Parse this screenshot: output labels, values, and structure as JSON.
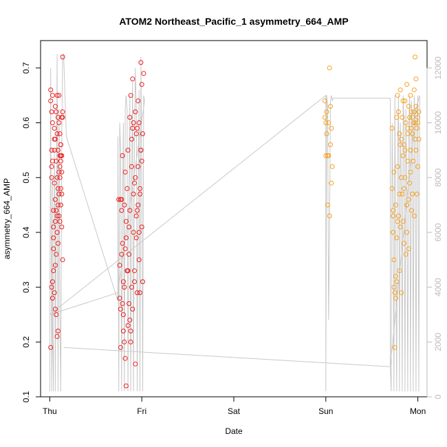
{
  "chart_data": {
    "type": "scatter",
    "title": "ATOM2 Northeast_Pacific_1 asymmetry_664_AMP",
    "xlabel": "Date",
    "ylabel": "asymmetry_664_AMP",
    "x_ticks": [
      "Thu",
      "Fri",
      "Sat",
      "Sun",
      "Mon"
    ],
    "y_ticks": [
      "0.1",
      "0.2",
      "0.3",
      "0.4",
      "0.5",
      "0.6",
      "0.7"
    ],
    "y2_ticks": [
      "0",
      "2000",
      "4000",
      "6000",
      "8000",
      "10000",
      "12000"
    ],
    "xlim": [
      -0.1,
      4.1
    ],
    "ylim": [
      0.1,
      0.75
    ],
    "y2lim": [
      0,
      13000
    ],
    "grid": false,
    "colors": {
      "red_points": "#ee1c1c",
      "orange_points": "#f5a020",
      "line": "#c8c8c8",
      "axis": "#000000",
      "axis2": "#bbbbbb"
    },
    "series": [
      {
        "color": "red_points",
        "x": [
          0.01,
          0.01,
          0.02,
          0.02,
          0.02,
          0.03,
          0.03,
          0.03,
          0.04,
          0.04,
          0.04,
          0.05,
          0.05,
          0.05,
          0.06,
          0.06,
          0.06,
          0.07,
          0.07,
          0.07,
          0.08,
          0.08,
          0.08,
          0.09,
          0.09,
          0.09,
          0.1,
          0.1,
          0.1,
          0.11,
          0.11,
          0.11,
          0.12,
          0.12,
          0.12,
          0.13,
          0.13,
          0.13,
          0.14,
          0.14,
          0.14,
          0.02,
          0.04,
          0.06,
          0.08,
          0.1,
          0.12,
          0.05,
          0.07,
          0.09,
          0.03,
          0.06,
          0.11,
          0.08,
          0.13,
          0.01,
          0.04,
          0.09,
          0.12,
          0.1,
          0.07,
          0.02,
          0.05,
          0.11,
          0.06,
          0.03,
          0.08,
          0.12,
          0.14,
          0.09,
          0.13
        ],
        "y": [
          0.66,
          0.64,
          0.55,
          0.52,
          0.5,
          0.65,
          0.6,
          0.53,
          0.44,
          0.41,
          0.37,
          0.59,
          0.55,
          0.49,
          0.63,
          0.57,
          0.46,
          0.62,
          0.53,
          0.44,
          0.65,
          0.58,
          0.5,
          0.61,
          0.55,
          0.48,
          0.6,
          0.51,
          0.43,
          0.58,
          0.52,
          0.42,
          0.56,
          0.54,
          0.48,
          0.54,
          0.47,
          0.41,
          0.72,
          0.62,
          0.35,
          0.3,
          0.39,
          0.34,
          0.43,
          0.47,
          0.56,
          0.29,
          0.25,
          0.22,
          0.28,
          0.26,
          0.54,
          0.21,
          0.61,
          0.19,
          0.33,
          0.38,
          0.45,
          0.65,
          0.36,
          0.62,
          0.57,
          0.5,
          0.42,
          0.31,
          0.4,
          0.53,
          0.61,
          0.45,
          0.51
        ]
      },
      {
        "color": "red_points",
        "x": [
          0.75,
          0.76,
          0.76,
          0.77,
          0.77,
          0.78,
          0.78,
          0.79,
          0.79,
          0.8,
          0.8,
          0.81,
          0.81,
          0.82,
          0.82,
          0.83,
          0.83,
          0.84,
          0.84,
          0.85,
          0.85,
          0.86,
          0.86,
          0.87,
          0.87,
          0.88,
          0.88,
          0.89,
          0.89,
          0.9,
          0.9,
          0.91,
          0.91,
          0.92,
          0.92,
          0.93,
          0.93,
          0.94,
          0.94,
          0.95,
          0.95,
          0.96,
          0.96,
          0.97,
          0.97,
          0.98,
          0.98,
          0.99,
          0.99,
          1.0,
          1.0,
          1.01,
          1.01,
          1.02,
          0.77,
          0.79,
          0.81,
          0.83,
          0.85,
          0.87,
          0.89,
          0.91,
          0.93,
          0.95,
          0.97,
          0.99,
          0.78,
          0.82,
          0.86,
          0.9,
          0.94,
          0.98,
          0.8,
          0.84,
          0.88,
          0.92,
          0.96,
          1.0
        ],
        "y": [
          0.46,
          0.34,
          0.28,
          0.46,
          0.19,
          0.46,
          0.36,
          0.27,
          0.54,
          0.31,
          0.25,
          0.45,
          0.2,
          0.17,
          0.51,
          0.39,
          0.12,
          0.48,
          0.33,
          0.23,
          0.55,
          0.41,
          0.27,
          0.61,
          0.44,
          0.22,
          0.65,
          0.52,
          0.3,
          0.68,
          0.59,
          0.4,
          0.6,
          0.49,
          0.33,
          0.62,
          0.5,
          0.39,
          0.58,
          0.44,
          0.29,
          0.64,
          0.52,
          0.35,
          0.6,
          0.47,
          0.29,
          0.71,
          0.55,
          0.67,
          0.41,
          0.58,
          0.31,
          0.69,
          0.26,
          0.38,
          0.3,
          0.42,
          0.33,
          0.24,
          0.57,
          0.47,
          0.16,
          0.59,
          0.4,
          0.55,
          0.44,
          0.37,
          0.36,
          0.26,
          0.43,
          0.48,
          0.22,
          0.33,
          0.2,
          0.31,
          0.45,
          0.53
        ]
      },
      {
        "color": "orange_points",
        "x": [
          2.99,
          2.99,
          3.0,
          3.0,
          3.01,
          3.01,
          3.02,
          3.02,
          3.03,
          3.03,
          3.04,
          3.04,
          3.05,
          3.05,
          3.06,
          3.06,
          3.07
        ],
        "y": [
          0.64,
          0.61,
          0.6,
          0.54,
          0.62,
          0.58,
          0.54,
          0.45,
          0.6,
          0.54,
          0.7,
          0.43,
          0.63,
          0.56,
          0.59,
          0.49,
          0.52
        ]
      },
      {
        "color": "orange_points",
        "x": [
          3.72,
          3.72,
          3.73,
          3.73,
          3.74,
          3.74,
          3.75,
          3.75,
          3.76,
          3.76,
          3.77,
          3.77,
          3.78,
          3.78,
          3.79,
          3.79,
          3.8,
          3.8,
          3.81,
          3.81,
          3.82,
          3.82,
          3.83,
          3.83,
          3.84,
          3.84,
          3.85,
          3.85,
          3.86,
          3.86,
          3.87,
          3.87,
          3.88,
          3.88,
          3.89,
          3.89,
          3.9,
          3.9,
          3.91,
          3.91,
          3.92,
          3.92,
          3.93,
          3.93,
          3.94,
          3.94,
          3.95,
          3.95,
          3.96,
          3.96,
          3.97,
          3.97,
          3.98,
          3.98,
          3.99,
          3.99,
          4.0,
          4.0,
          4.01,
          4.01,
          3.74,
          3.78,
          3.82,
          3.86,
          3.9,
          3.94,
          3.98,
          3.76,
          3.8,
          3.84,
          3.88,
          3.92,
          3.96,
          4.0,
          3.73,
          3.77,
          3.81,
          3.85,
          3.89,
          3.93,
          3.97
        ],
        "y": [
          0.59,
          0.48,
          0.44,
          0.4,
          0.3,
          0.51,
          0.29,
          0.19,
          0.28,
          0.45,
          0.31,
          0.61,
          0.65,
          0.52,
          0.62,
          0.43,
          0.58,
          0.33,
          0.66,
          0.41,
          0.57,
          0.29,
          0.61,
          0.47,
          0.64,
          0.42,
          0.56,
          0.38,
          0.64,
          0.5,
          0.6,
          0.36,
          0.67,
          0.45,
          0.58,
          0.53,
          0.63,
          0.37,
          0.61,
          0.49,
          0.65,
          0.55,
          0.59,
          0.44,
          0.61,
          0.47,
          0.6,
          0.53,
          0.62,
          0.43,
          0.72,
          0.6,
          0.68,
          0.55,
          0.59,
          0.47,
          0.61,
          0.52,
          0.62,
          0.57,
          0.35,
          0.42,
          0.5,
          0.55,
          0.46,
          0.58,
          0.63,
          0.32,
          0.47,
          0.54,
          0.4,
          0.51,
          0.66,
          0.6,
          0.43,
          0.39,
          0.56,
          0.48,
          0.59,
          0.62,
          0.57
        ]
      }
    ],
    "line": {
      "x": [
        0.0,
        0.0,
        0.01,
        0.02,
        0.03,
        0.03,
        0.04,
        0.05,
        0.06,
        0.06,
        0.07,
        0.08,
        0.09,
        0.1,
        0.11,
        0.12,
        0.13,
        0.14,
        0.15,
        0.18,
        0.74,
        0.74,
        0.75,
        0.76,
        0.77,
        0.78,
        0.79,
        0.8,
        0.81,
        0.82,
        0.83,
        0.84,
        0.85,
        0.86,
        0.87,
        0.88,
        0.89,
        0.9,
        0.91,
        0.92,
        0.93,
        0.94,
        0.95,
        0.96,
        0.97,
        0.98,
        0.99,
        1.0,
        1.01,
        1.02,
        1.03,
        0.74,
        0.0,
        3.0,
        3.0,
        3.01,
        3.02,
        3.03,
        3.04,
        3.05,
        3.06,
        3.07,
        3.08,
        3.7,
        3.7,
        3.71,
        3.72,
        3.73,
        3.74,
        3.75,
        3.76,
        3.77,
        3.78,
        3.79,
        3.8,
        3.81,
        3.82,
        3.83,
        3.84,
        3.85,
        3.86,
        3.87,
        3.88,
        3.89,
        3.9,
        3.91,
        3.92,
        3.93,
        3.94,
        3.95,
        3.96,
        3.97,
        3.98,
        3.99,
        4.0,
        4.01,
        4.02,
        3.98,
        3.7,
        0.15
      ],
      "y": [
        200,
        2500,
        12000,
        200,
        8000,
        2500,
        200,
        9000,
        5000,
        200,
        6000,
        12500,
        200,
        10500,
        3000,
        200,
        9500,
        12500,
        12500,
        9500,
        3500,
        9500,
        200,
        10000,
        9000,
        200,
        7000,
        10000,
        200,
        10500,
        11000,
        10500,
        200,
        7000,
        11000,
        200,
        8000,
        11500,
        200,
        9000,
        12000,
        10500,
        200,
        7000,
        11200,
        200,
        12400,
        8000,
        200,
        11000,
        10800,
        3800,
        3000,
        11000,
        200,
        11000,
        10500,
        2800,
        6000,
        10800,
        11000,
        10800,
        10900,
        10900,
        1100,
        200,
        10000,
        7000,
        200,
        11000,
        5000,
        200,
        9000,
        11000,
        200,
        10000,
        8000,
        200,
        11000,
        10000,
        200,
        10500,
        7500,
        200,
        9500,
        11000,
        200,
        10800,
        10000,
        200,
        11000,
        10000,
        200,
        10000,
        11000,
        200,
        11000,
        10500,
        1100,
        1800
      ]
    }
  }
}
